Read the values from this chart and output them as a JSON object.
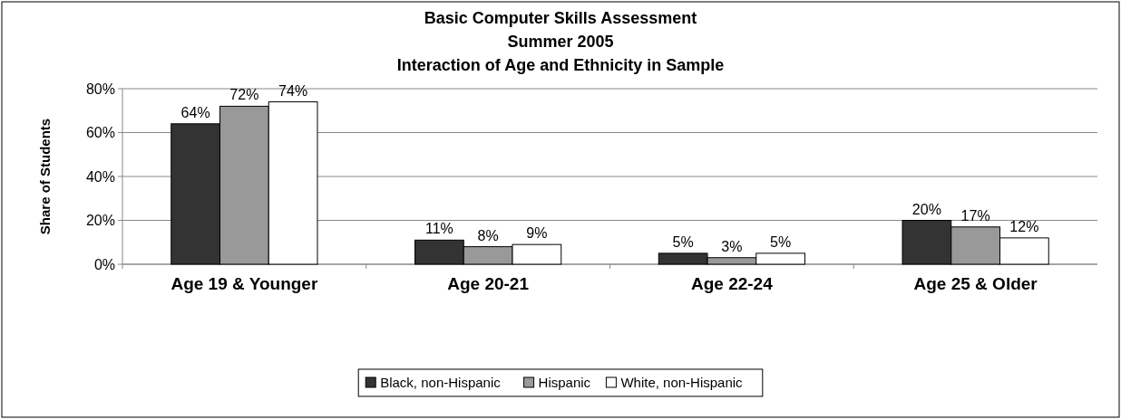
{
  "chart_data": {
    "type": "bar",
    "title": "Basic Computer Skills Assessment\nSummer 2005\nInteraction of Age and Ethnicity in Sample",
    "ylabel": "Share of Students",
    "categories": [
      "Age 19 & Younger",
      "Age 20-21",
      "Age 22-24",
      "Age 25 & Older"
    ],
    "series": [
      {
        "name": "Black, non-Hispanic",
        "color": "#333333",
        "values": [
          64,
          11,
          5,
          20
        ],
        "value_labels": [
          "64%",
          "11%",
          "5%",
          "20%"
        ]
      },
      {
        "name": "Hispanic",
        "color": "#999999",
        "values": [
          72,
          8,
          3,
          17
        ],
        "value_labels": [
          "72%",
          "8%",
          "3%",
          "17%"
        ]
      },
      {
        "name": "White, non-Hispanic",
        "color": "#ffffff",
        "values": [
          74,
          9,
          5,
          12
        ],
        "value_labels": [
          "74%",
          "9%",
          "5%",
          "12%"
        ]
      }
    ],
    "ylim": [
      0,
      80
    ],
    "yticks": [
      {
        "value": 0,
        "label": "0%"
      },
      {
        "value": 20,
        "label": "20%"
      },
      {
        "value": 40,
        "label": "40%"
      },
      {
        "value": 60,
        "label": "60%"
      },
      {
        "value": 80,
        "label": "80%"
      }
    ],
    "grid": "y",
    "legend": "bottom"
  }
}
